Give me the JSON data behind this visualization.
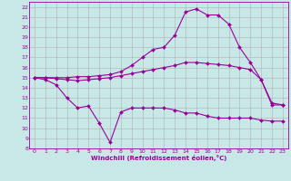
{
  "xlabel": "Windchill (Refroidissement éolien,°C)",
  "background_color": "#c8e8e8",
  "grid_color": "#b0b0b0",
  "line_color": "#990099",
  "xlim": [
    -0.5,
    23.5
  ],
  "ylim": [
    8,
    22.5
  ],
  "xticks": [
    0,
    1,
    2,
    3,
    4,
    5,
    6,
    7,
    8,
    9,
    10,
    11,
    12,
    13,
    14,
    15,
    16,
    17,
    18,
    19,
    20,
    21,
    22,
    23
  ],
  "yticks": [
    8,
    9,
    10,
    11,
    12,
    13,
    14,
    15,
    16,
    17,
    18,
    19,
    20,
    21,
    22
  ],
  "line1_x": [
    0,
    1,
    2,
    3,
    4,
    5,
    6,
    7,
    8,
    9,
    10,
    11,
    12,
    13,
    14,
    15,
    16,
    17,
    18,
    19,
    20,
    21,
    22,
    23
  ],
  "line1_y": [
    15.0,
    14.8,
    14.3,
    13.0,
    12.0,
    12.2,
    10.5,
    8.6,
    11.6,
    12.0,
    12.0,
    12.0,
    12.0,
    11.8,
    11.5,
    11.5,
    11.2,
    11.0,
    11.0,
    11.0,
    11.0,
    10.8,
    10.7,
    10.7
  ],
  "line2_x": [
    0,
    1,
    2,
    3,
    4,
    5,
    6,
    7,
    8,
    9,
    10,
    11,
    12,
    13,
    14,
    15,
    16,
    17,
    18,
    19,
    20,
    21,
    22,
    23
  ],
  "line2_y": [
    15.0,
    15.0,
    14.9,
    14.8,
    14.7,
    14.8,
    14.9,
    15.0,
    15.2,
    15.4,
    15.6,
    15.8,
    16.0,
    16.2,
    16.5,
    16.5,
    16.4,
    16.3,
    16.2,
    16.0,
    15.8,
    14.8,
    12.5,
    12.3
  ],
  "line3_x": [
    0,
    1,
    2,
    3,
    4,
    5,
    6,
    7,
    8,
    9,
    10,
    11,
    12,
    13,
    14,
    15,
    16,
    17,
    18,
    19,
    20,
    21,
    22,
    23
  ],
  "line3_y": [
    15.0,
    15.0,
    15.0,
    15.0,
    15.1,
    15.1,
    15.2,
    15.3,
    15.6,
    16.2,
    17.0,
    17.8,
    18.0,
    19.2,
    21.5,
    21.8,
    21.2,
    21.2,
    20.3,
    18.0,
    16.5,
    14.8,
    12.3,
    12.3
  ]
}
